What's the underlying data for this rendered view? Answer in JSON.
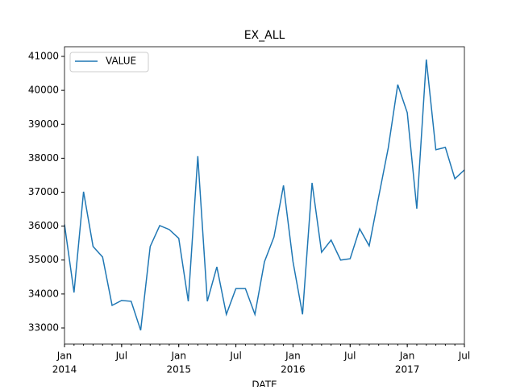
{
  "chart_data": {
    "type": "line",
    "title": "EX_ALL",
    "xlabel": "DATE",
    "x": [
      "2014-01",
      "2014-02",
      "2014-03",
      "2014-04",
      "2014-05",
      "2014-06",
      "2014-07",
      "2014-08",
      "2014-09",
      "2014-10",
      "2014-11",
      "2014-12",
      "2015-01",
      "2015-02",
      "2015-03",
      "2015-04",
      "2015-05",
      "2015-06",
      "2015-07",
      "2015-08",
      "2015-09",
      "2015-10",
      "2015-11",
      "2015-12",
      "2016-01",
      "2016-02",
      "2016-03",
      "2016-04",
      "2016-05",
      "2016-06",
      "2016-07",
      "2016-08",
      "2016-09",
      "2016-10",
      "2016-11",
      "2016-12",
      "2017-01",
      "2017-02",
      "2017-03",
      "2017-04",
      "2017-05",
      "2017-06",
      "2017-07"
    ],
    "series": [
      {
        "name": "VALUE",
        "color": "#1f77b4",
        "values": [
          36050,
          34045,
          37014,
          35400,
          35090,
          33665,
          33810,
          33785,
          32930,
          35400,
          36015,
          35900,
          35640,
          33785,
          38060,
          33785,
          34800,
          33400,
          34160,
          34160,
          33400,
          34950,
          35680,
          37200,
          34950,
          33400,
          37275,
          35230,
          35590,
          35000,
          35040,
          35920,
          35420,
          36870,
          38300,
          40170,
          39340,
          36515,
          40910,
          38250,
          38320,
          37395,
          37655
        ]
      }
    ],
    "xlim": [
      "2014-01",
      "2017-07"
    ],
    "xticks": [
      {
        "value": "2014-01",
        "label": "Jan"
      },
      {
        "value": "2014-07",
        "label": "Jul"
      },
      {
        "value": "2015-01",
        "label": "Jan"
      },
      {
        "value": "2015-07",
        "label": "Jul"
      },
      {
        "value": "2016-01",
        "label": "Jan"
      },
      {
        "value": "2016-07",
        "label": "Jul"
      },
      {
        "value": "2017-01",
        "label": "Jan"
      },
      {
        "value": "2017-07",
        "label": "Jul"
      }
    ],
    "xtick_years": [
      {
        "value": "2014-01",
        "label": "2014"
      },
      {
        "value": "2015-01",
        "label": "2015"
      },
      {
        "value": "2016-01",
        "label": "2016"
      },
      {
        "value": "2017-01",
        "label": "2017"
      }
    ],
    "ylim": [
      32525,
      41285
    ],
    "yticks": [
      33000,
      34000,
      35000,
      36000,
      37000,
      38000,
      39000,
      40000,
      41000
    ],
    "legend": "upper left",
    "grid": false
  }
}
